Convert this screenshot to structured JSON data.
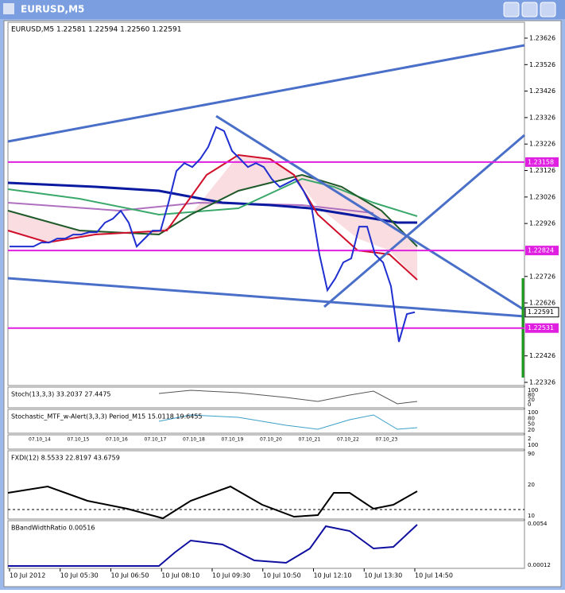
{
  "window": {
    "title": "EURUSD,M5"
  },
  "chart_data": {
    "type": "line",
    "header": "EURUSD,M5  1.22581 1.22594 1.22560 1.22591",
    "values": [
      1.22839,
      1.22839,
      1.22839,
      1.22839,
      1.22854,
      1.22854,
      1.22869,
      1.22869,
      1.22884,
      1.22884,
      1.22893,
      1.22893,
      1.22929,
      1.22944,
      1.22974,
      1.22929,
      1.22839,
      1.22869,
      1.22899,
      1.22899,
      1.23004,
      1.23124,
      1.23154,
      1.23139,
      1.2317,
      1.23215,
      1.2329,
      1.23275,
      1.232,
      1.2317,
      1.23139,
      1.23154,
      1.23139,
      1.23094,
      1.23064,
      1.23079,
      1.23094,
      1.23049,
      1.22989,
      1.22809,
      1.22674,
      1.22719,
      1.22779,
      1.22794,
      1.22914,
      1.22914,
      1.22809,
      1.22779,
      1.22689,
      1.22479,
      1.22584,
      1.22591
    ],
    "color": "#1f2fd0",
    "ylim": [
      1.22314,
      1.23686
    ],
    "yticks": [
      1.23626,
      1.23526,
      1.23426,
      1.23326,
      1.23226,
      1.23126,
      1.23026,
      1.22926,
      1.22726,
      1.22626,
      1.22426,
      1.22326
    ],
    "levels": [
      1.23158,
      1.22824,
      1.22531
    ],
    "last_price": 1.22591,
    "xtick_labels": [
      "10 Jul 2012",
      "10 Jul 05:30",
      "10 Jul 06:50",
      "10 Jul 08:10",
      "10 Jul 09:30",
      "10 Jul 10:50",
      "10 Jul 12:10",
      "10 Jul 13:30",
      "10 Jul 14:50"
    ]
  },
  "indicators": [
    {
      "label": "Stoch(13,3,3) 33.2037 27.4475",
      "scale": [
        "100",
        "80",
        "20",
        "0"
      ]
    },
    {
      "label": "Stochastic_MTF_w-Alert(3,3,3) Period_M15 15.0118 19.6455",
      "scale": [
        "100",
        "80",
        "50",
        "20"
      ]
    },
    {
      "label": "FXDI(12) 8.5533 22.8197 43.6759",
      "scale": [
        "90",
        "20",
        "10"
      ]
    },
    {
      "label": "BBandWidthRatio 0.00516",
      "scale": [
        "0.0054",
        "0.00012"
      ]
    }
  ],
  "date_panel": {
    "labels": [
      "07.10_14",
      "07.10_15",
      "07.10_16",
      "07.10_17",
      "07.10_18",
      "07.10_19",
      "07.10_20",
      "07.10_21",
      "07.10_22",
      "07.10_23"
    ],
    "scale": [
      "2",
      "100"
    ]
  }
}
